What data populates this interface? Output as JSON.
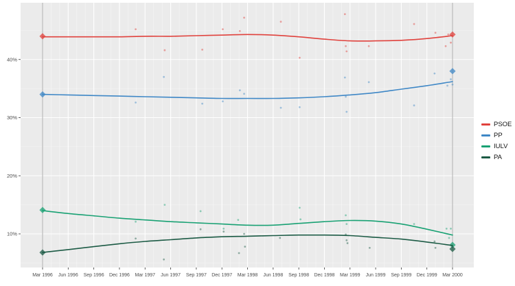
{
  "chart_data": {
    "type": "scatter",
    "subtype": "polls-with-loess-smooth-and-election-diamonds",
    "title": "",
    "xlabel": "",
    "ylabel": "",
    "x_tick_labels": [
      "Mar 1996",
      "Jun 1996",
      "Sep 1996",
      "Dec 1996",
      "Mar 1997",
      "Jun 1997",
      "Sep 1997",
      "Dec 1997",
      "Mar 1998",
      "Jun 1998",
      "Sep 1998",
      "Dec 1998",
      "Mar 1999",
      "Jun 1999",
      "Sep 1999",
      "Dec 1999",
      "Mar 2000"
    ],
    "x_tick_months": [
      0,
      3,
      6,
      9,
      12,
      15,
      18,
      21,
      24,
      27,
      30,
      33,
      36,
      39,
      42,
      45,
      48
    ],
    "x_range_months": [
      0,
      48
    ],
    "y_tick_labels": [
      "10%",
      "20%",
      "30%",
      "40%"
    ],
    "y_tick_values": [
      10,
      20,
      30,
      40
    ],
    "y_minor_values": [
      5,
      15,
      25,
      35,
      45
    ],
    "ylim": [
      4.2,
      49.5
    ],
    "grid": "on",
    "reference_lines_months": [
      0,
      48
    ],
    "legend_position": "right",
    "colors": {
      "panel_bg": "#EBEBEB",
      "grid_major": "#FFFFFF",
      "grid_minor": "#F3F3F3",
      "reference_line": "#A6A6A6",
      "axis_text": "#4D4D4D",
      "tick_mark": "#333333",
      "legend_text": "#111111"
    },
    "series": [
      {
        "name": "PSOE",
        "color": "#E0413C",
        "smooth_quarterly_pct": [
          43.9,
          43.9,
          43.9,
          43.9,
          44.0,
          44.0,
          44.1,
          44.2,
          44.3,
          44.2,
          43.9,
          43.5,
          43.2,
          43.2,
          43.3,
          43.6,
          44.1
        ],
        "elections": [
          {
            "m": 0,
            "pct": 44.0
          },
          {
            "m": 48,
            "pct": 44.3
          }
        ],
        "polls": [
          [
            10.9,
            45.2
          ],
          [
            14.3,
            41.6
          ],
          [
            18.7,
            41.7
          ],
          [
            21.1,
            45.2
          ],
          [
            23.1,
            44.9
          ],
          [
            23.6,
            47.2
          ],
          [
            27.9,
            46.5
          ],
          [
            30.1,
            40.3
          ],
          [
            35.4,
            47.8
          ],
          [
            35.5,
            42.3
          ],
          [
            35.6,
            41.4
          ],
          [
            38.2,
            42.3
          ],
          [
            43.5,
            46.1
          ],
          [
            46.0,
            44.6
          ],
          [
            47.2,
            42.3
          ],
          [
            47.5,
            44.3
          ],
          [
            47.8,
            42.9
          ]
        ]
      },
      {
        "name": "PP",
        "color": "#3E87C6",
        "smooth_quarterly_pct": [
          34.0,
          33.9,
          33.8,
          33.7,
          33.6,
          33.5,
          33.4,
          33.3,
          33.3,
          33.3,
          33.4,
          33.6,
          33.9,
          34.3,
          34.9,
          35.5,
          36.2
        ],
        "elections": [
          {
            "m": 0,
            "pct": 34.0
          },
          {
            "m": 48,
            "pct": 38.0
          }
        ],
        "polls": [
          [
            10.9,
            32.6
          ],
          [
            14.2,
            37.0
          ],
          [
            18.7,
            32.4
          ],
          [
            21.1,
            32.8
          ],
          [
            23.1,
            34.7
          ],
          [
            23.6,
            34.1
          ],
          [
            27.9,
            31.7
          ],
          [
            30.1,
            31.8
          ],
          [
            35.4,
            36.9
          ],
          [
            35.5,
            33.6
          ],
          [
            35.6,
            31.0
          ],
          [
            38.2,
            36.1
          ],
          [
            43.5,
            32.1
          ],
          [
            45.9,
            37.6
          ],
          [
            47.4,
            35.5
          ],
          [
            47.8,
            36.6
          ],
          [
            48.0,
            35.7
          ]
        ]
      },
      {
        "name": "IULV",
        "color": "#18A173",
        "smooth_quarterly_pct": [
          14.0,
          13.5,
          13.1,
          12.7,
          12.4,
          12.1,
          11.9,
          11.7,
          11.5,
          11.5,
          11.8,
          12.1,
          12.3,
          12.2,
          11.7,
          10.8,
          9.8
        ],
        "elections": [
          {
            "m": 0,
            "pct": 14.1
          },
          {
            "m": 48,
            "pct": 8.1
          }
        ],
        "polls": [
          [
            10.9,
            12.1
          ],
          [
            14.3,
            15.0
          ],
          [
            18.5,
            13.9
          ],
          [
            21.2,
            10.9
          ],
          [
            22.9,
            12.4
          ],
          [
            30.1,
            14.5
          ],
          [
            30.2,
            12.5
          ],
          [
            35.5,
            13.2
          ],
          [
            35.6,
            11.7
          ],
          [
            43.5,
            11.7
          ],
          [
            47.3,
            10.9
          ],
          [
            47.6,
            9.3
          ],
          [
            47.8,
            10.9
          ]
        ]
      },
      {
        "name": "PA",
        "color": "#1B5A44",
        "smooth_quarterly_pct": [
          6.8,
          7.3,
          7.8,
          8.3,
          8.7,
          9.0,
          9.3,
          9.5,
          9.6,
          9.7,
          9.8,
          9.8,
          9.7,
          9.4,
          9.1,
          8.6,
          8.0
        ],
        "elections": [
          {
            "m": 0,
            "pct": 6.8
          },
          {
            "m": 48,
            "pct": 7.4
          }
        ],
        "polls": [
          [
            10.9,
            9.2
          ],
          [
            14.2,
            5.6
          ],
          [
            18.5,
            10.8
          ],
          [
            21.2,
            10.4
          ],
          [
            23.0,
            6.7
          ],
          [
            23.6,
            10.0
          ],
          [
            23.7,
            7.8
          ],
          [
            27.8,
            9.3
          ],
          [
            35.5,
            9.9
          ],
          [
            35.6,
            8.9
          ],
          [
            35.7,
            8.4
          ],
          [
            38.3,
            7.6
          ],
          [
            45.9,
            8.7
          ],
          [
            46.0,
            7.6
          ]
        ]
      }
    ]
  }
}
